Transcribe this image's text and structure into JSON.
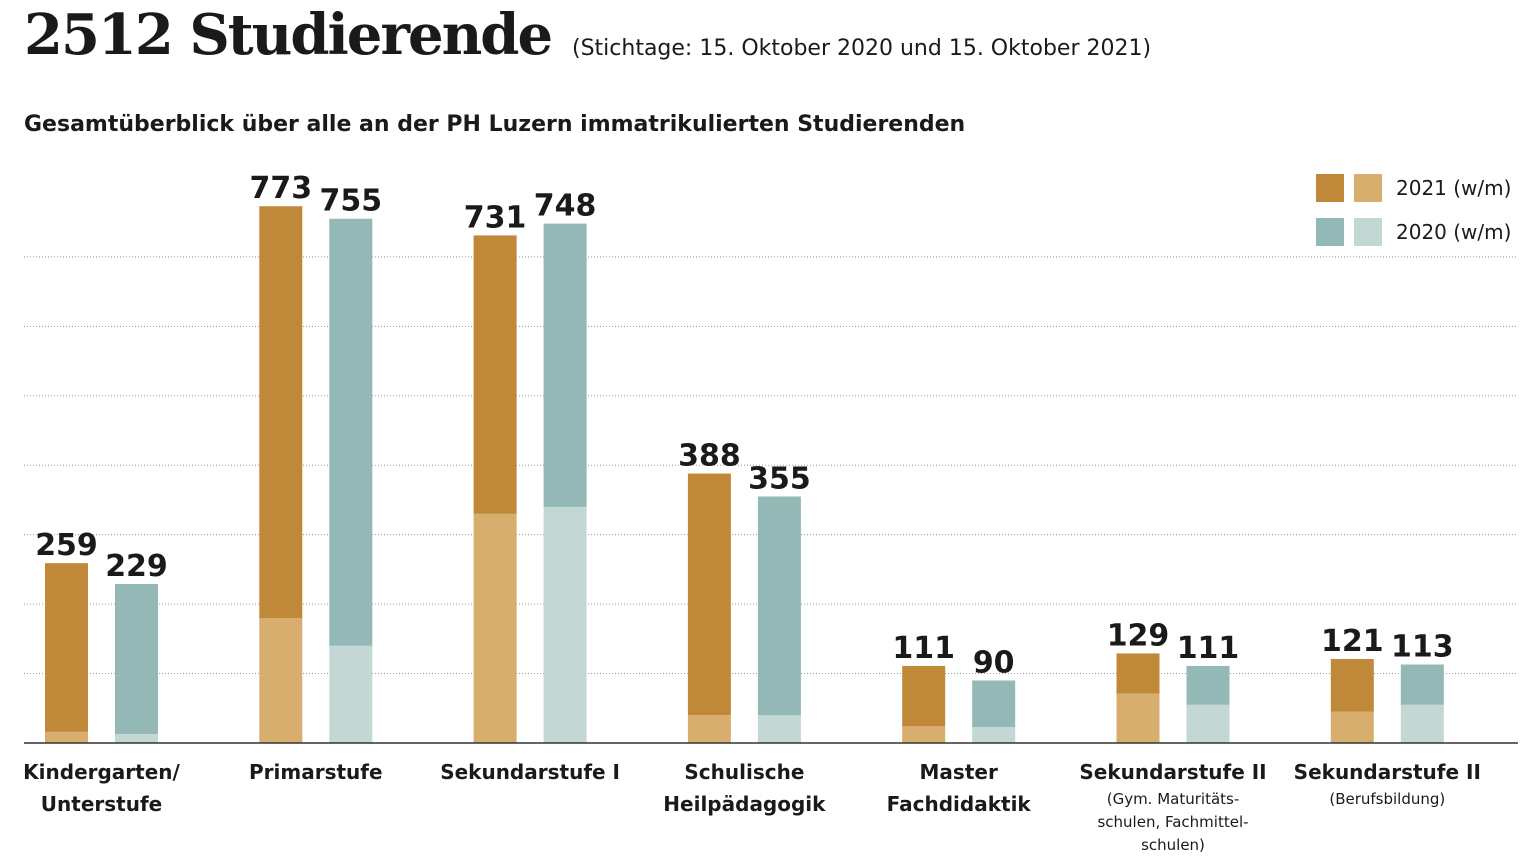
{
  "header": {
    "title": "2512 Studierende",
    "subtitle": "(Stichtage: 15. Oktober 2020 und 15. Oktober 2021)",
    "description": "Gesamtüberblick über alle an der PH Luzern immatrikulierten Studierenden"
  },
  "legend": {
    "items": [
      {
        "label": "2021 (w/m)",
        "color_w": "#c0893a",
        "color_m": "#d8ae6e"
      },
      {
        "label": "2020 (w/m)",
        "color_w": "#93b8b5",
        "color_m": "#c3d7d5"
      }
    ]
  },
  "colors": {
    "2021_w": "#c0893a",
    "2021_m": "#d8ae6e",
    "2020_w": "#93b8b5",
    "2020_m": "#c3d7d5",
    "grid": "#9a9a9a",
    "axis": "#333333"
  },
  "categories": [
    {
      "label": "Kindergarten/\nUnterstufe",
      "sub": ""
    },
    {
      "label": "Primarstufe",
      "sub": ""
    },
    {
      "label": "Sekundarstufe I",
      "sub": ""
    },
    {
      "label": "Schulische\nHeilpädagogik",
      "sub": ""
    },
    {
      "label": "Master\nFachdidaktik",
      "sub": ""
    },
    {
      "label": "Sekundarstufe II",
      "sub": "(Gym. Maturitäts-\nschulen, Fachmittel-\nschulen)"
    },
    {
      "label": "Sekundarstufe II",
      "sub": "(Berufsbildung)"
    }
  ],
  "chart_data": {
    "type": "bar",
    "stacked": true,
    "categories": [
      "Kindergarten/ Unterstufe",
      "Primarstufe",
      "Sekundarstufe I",
      "Schulische Heilpädagogik",
      "Master Fachdidaktik",
      "Sekundarstufe II (Gym. Maturitätsschulen, Fachmittelschulen)",
      "Sekundarstufe II (Berufsbildung)"
    ],
    "series": [
      {
        "name": "2021 (w/m)",
        "totals": [
          259,
          773,
          731,
          388,
          111,
          129,
          121
        ],
        "m": [
          16,
          180,
          330,
          40,
          24,
          71,
          45
        ],
        "w": [
          243,
          593,
          401,
          348,
          87,
          58,
          76
        ]
      },
      {
        "name": "2020 (w/m)",
        "totals": [
          229,
          755,
          748,
          355,
          90,
          111,
          113
        ],
        "m": [
          13,
          140,
          340,
          40,
          23,
          55,
          55
        ],
        "w": [
          216,
          615,
          408,
          315,
          67,
          56,
          58
        ]
      }
    ],
    "ylim": [
      0,
      800
    ],
    "grid": true,
    "legend_position": "top-right"
  }
}
